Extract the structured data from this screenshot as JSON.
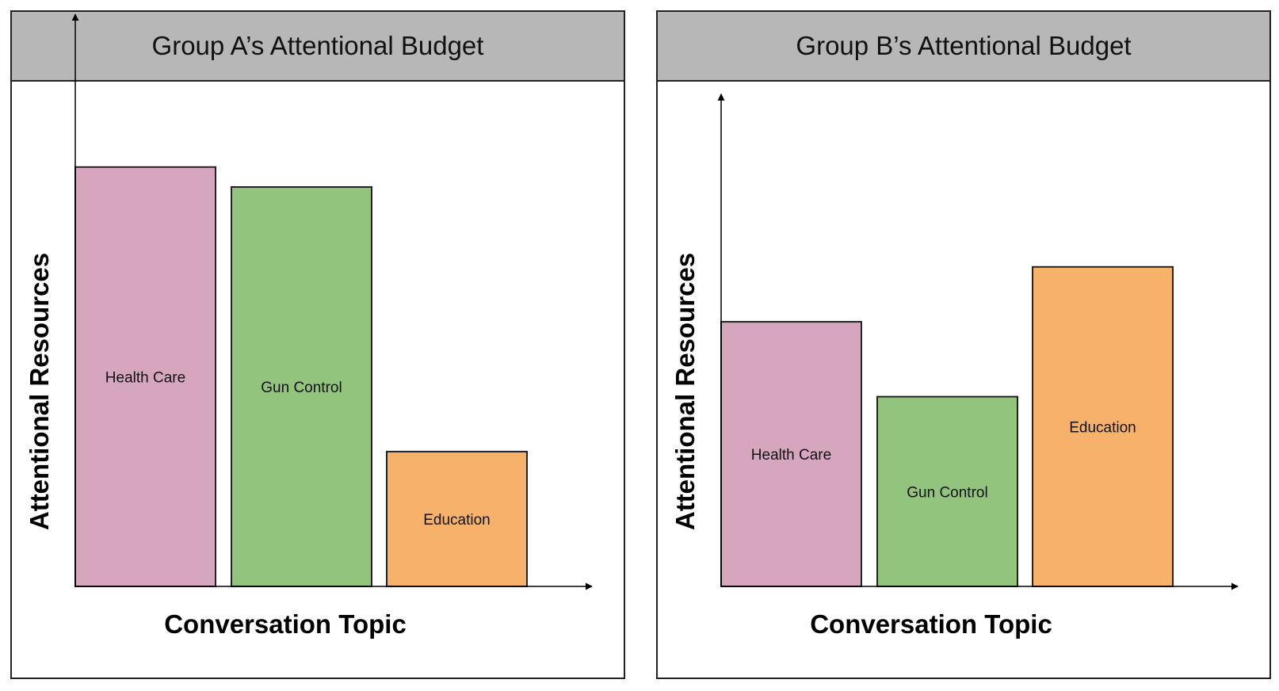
{
  "colors": {
    "health_care": "#d5a6bd",
    "gun_control": "#93c47d",
    "education": "#f6b26b",
    "header_bg": "#b7b7b7",
    "stroke": "#222222"
  },
  "chart_data": [
    {
      "type": "bar",
      "title": "Group A’s Attentional Budget",
      "xlabel": "Conversation Topic",
      "ylabel": "Attentional Resources",
      "categories": [
        "Health Care",
        "Gun Control",
        "Education"
      ],
      "values": [
        0.84,
        0.8,
        0.27
      ],
      "ylim": [
        0,
        1
      ],
      "y_axis_top": 1.0,
      "grid": false,
      "value_scale": "relative, no numeric ticks shown"
    },
    {
      "type": "bar",
      "title": "Group B’s Attentional Budget",
      "xlabel": "Conversation Topic",
      "ylabel": "Attentional Resources",
      "categories": [
        "Health Care",
        "Gun Control",
        "Education"
      ],
      "values": [
        0.53,
        0.38,
        0.64
      ],
      "ylim": [
        0,
        1
      ],
      "y_axis_top": 0.84,
      "grid": false,
      "value_scale": "relative, no numeric ticks shown"
    }
  ]
}
